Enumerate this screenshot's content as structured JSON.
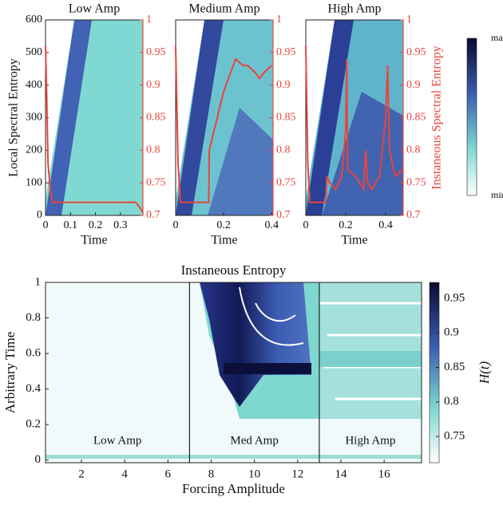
{
  "chart_data": [
    {
      "type": "line",
      "title": "Low Amp",
      "xlabel": "Time",
      "ylabel": "Local Spectral Entropy",
      "xlim": [
        0,
        0.39
      ],
      "xticks": [
        0,
        0.1,
        0.2,
        0.3
      ],
      "ylim": [
        0,
        600
      ],
      "yticks": [
        0,
        100,
        200,
        300,
        400,
        500,
        600
      ],
      "y2lim": [
        0.7,
        1
      ],
      "y2ticks": [
        0.7,
        0.75,
        0.8,
        0.85,
        0.9,
        0.95,
        1
      ],
      "x": [
        0,
        0.005,
        0.01,
        0.02,
        0.03,
        0.05,
        0.1,
        0.2,
        0.3,
        0.36,
        0.37,
        0.39
      ],
      "series": [
        {
          "color": "#e8453c",
          "axis": "y2",
          "values": [
            0.96,
            0.88,
            0.78,
            0.735,
            0.72,
            0.72,
            0.72,
            0.72,
            0.72,
            0.72,
            0.716,
            0.705
          ]
        }
      ]
    },
    {
      "type": "line",
      "title": "Medium Amp",
      "xlabel": "Time",
      "xlim": [
        0,
        0.406
      ],
      "xticks": [
        0,
        0.2,
        0.4
      ],
      "y2lim": [
        0.7,
        1
      ],
      "y2ticks": [
        0.7,
        0.75,
        0.8,
        0.85,
        0.9,
        0.95,
        1
      ],
      "x": [
        0,
        0.01,
        0.02,
        0.05,
        0.1,
        0.138,
        0.14,
        0.16,
        0.18,
        0.2,
        0.22,
        0.25,
        0.28,
        0.3,
        0.33,
        0.35,
        0.37,
        0.4
      ],
      "series": [
        {
          "color": "#e8453c",
          "axis": "y2",
          "values": [
            0.96,
            0.78,
            0.72,
            0.72,
            0.72,
            0.72,
            0.8,
            0.83,
            0.86,
            0.89,
            0.91,
            0.94,
            0.93,
            0.93,
            0.92,
            0.91,
            0.92,
            0.93
          ]
        }
      ]
    },
    {
      "type": "line",
      "title": "High Amp",
      "xlabel": "Time",
      "y2label": "Instaneous Spectral Entropy",
      "xlim": [
        0,
        0.488
      ],
      "xticks": [
        0,
        0.2,
        0.4
      ],
      "y2lim": [
        0.7,
        1
      ],
      "y2ticks": [
        0.7,
        0.75,
        0.8,
        0.85,
        0.9,
        0.95,
        1
      ],
      "x": [
        0,
        0.01,
        0.02,
        0.05,
        0.1,
        0.105,
        0.12,
        0.15,
        0.18,
        0.2,
        0.205,
        0.21,
        0.25,
        0.29,
        0.3,
        0.31,
        0.33,
        0.37,
        0.4,
        0.41,
        0.42,
        0.44,
        0.45,
        0.48
      ],
      "series": [
        {
          "color": "#e8453c",
          "axis": "y2",
          "values": [
            0.96,
            0.78,
            0.72,
            0.72,
            0.72,
            0.76,
            0.75,
            0.74,
            0.76,
            0.83,
            0.94,
            0.77,
            0.76,
            0.74,
            0.8,
            0.75,
            0.74,
            0.76,
            0.85,
            0.93,
            0.8,
            0.77,
            0.76,
            0.77
          ]
        }
      ]
    },
    {
      "type": "colorbar",
      "top_label": "max",
      "bottom_label": "min"
    },
    {
      "type": "heatmap",
      "title": "Instaneous Entropy",
      "xlabel": "Forcing Amplitude",
      "ylabel": "Arbitrary Time",
      "xlim": [
        0.34,
        17.73
      ],
      "xticks": [
        2,
        4,
        6,
        8,
        10,
        12,
        14,
        16
      ],
      "ylim": [
        -0.015,
        1
      ],
      "yticks": [
        0,
        0.2,
        0.4,
        0.6,
        0.8,
        1
      ],
      "dividers": [
        7,
        13
      ],
      "region_labels": [
        "Low Amp",
        "Med Amp",
        "High Amp"
      ],
      "colorbar": {
        "label": "H(t)",
        "lim": [
          0.712,
          0.973
        ],
        "ticks": [
          0.75,
          0.8,
          0.85,
          0.9,
          0.95
        ]
      }
    }
  ]
}
